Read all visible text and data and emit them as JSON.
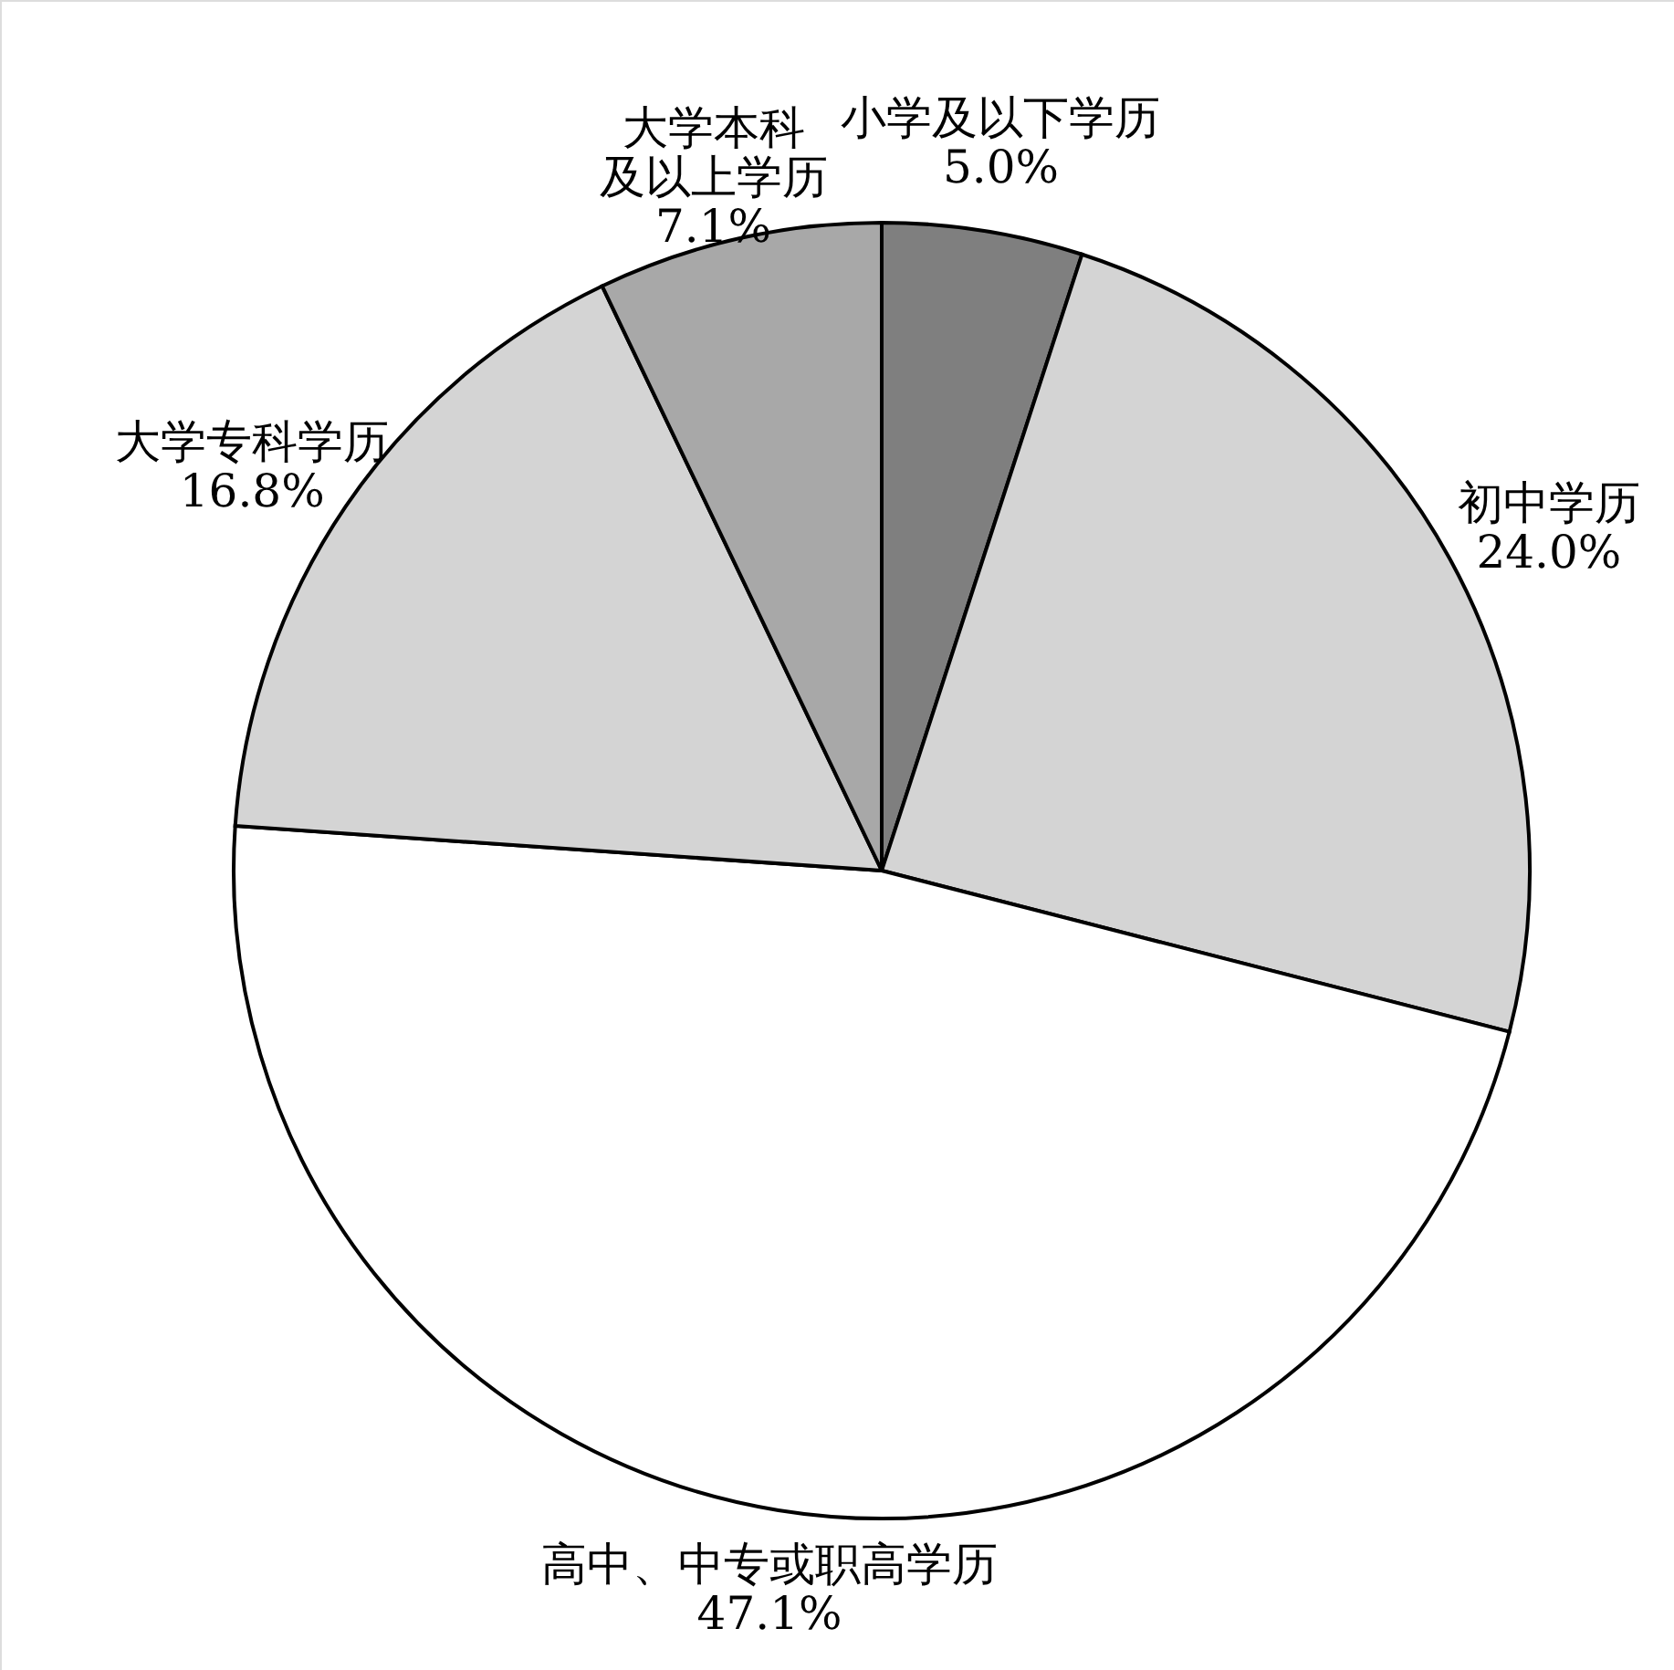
{
  "chart_data": {
    "type": "pie",
    "categories": [
      "小学及以下学历",
      "初中学历",
      "高中、中专或职高学历",
      "大学专科学历",
      "大学本科及以上学历"
    ],
    "values": [
      5.0,
      24.0,
      47.1,
      16.8,
      7.1
    ],
    "colors": [
      "#7f7f7f",
      "#d4d4d4",
      "#ffffff",
      "#d4d4d4",
      "#a8a8a8"
    ],
    "value_labels": [
      "5.0%",
      "24.0%",
      "47.1%",
      "16.8%",
      "7.1%"
    ]
  }
}
